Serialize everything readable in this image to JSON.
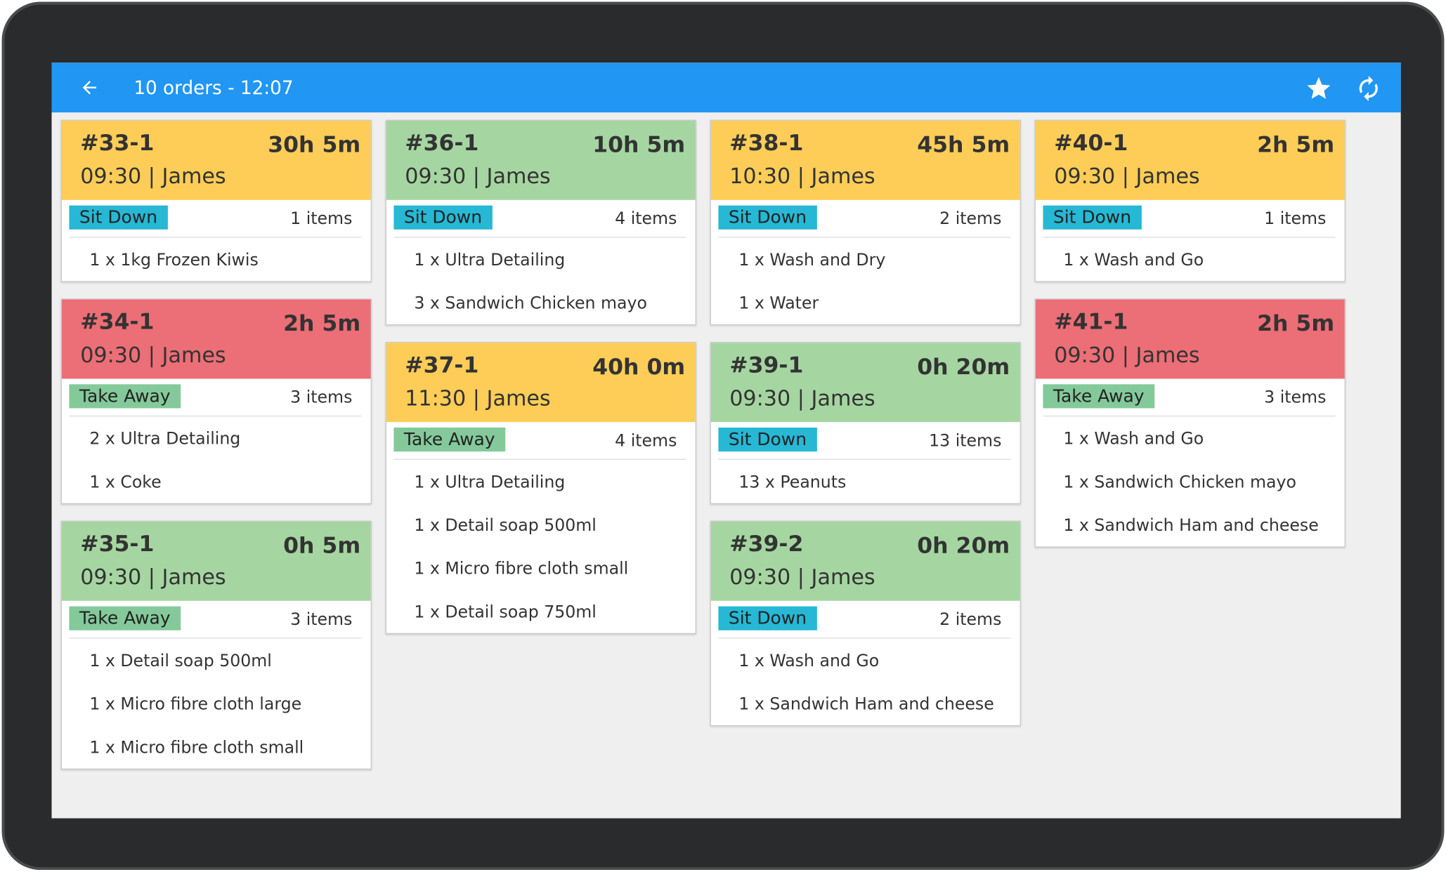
{
  "header": {
    "title": "10 orders - 12:07"
  },
  "columns": [
    {
      "orders": [
        {
          "id": "#33-1",
          "elapsed": "30h 5m",
          "subtitle": "09:30 | James",
          "status": "yellow",
          "mode": "Sit Down",
          "count": "1 items",
          "items": [
            "1 x 1kg Frozen Kiwis"
          ]
        },
        {
          "id": "#34-1",
          "elapsed": "2h 5m",
          "subtitle": "09:30 | James",
          "status": "red",
          "mode": "Take Away",
          "count": "3 items",
          "items": [
            "2 x Ultra Detailing",
            "1 x Coke"
          ]
        },
        {
          "id": "#35-1",
          "elapsed": "0h 5m",
          "subtitle": "09:30 | James",
          "status": "green",
          "mode": "Take Away",
          "count": "3 items",
          "items": [
            "1 x Detail soap 500ml",
            "1 x Micro fibre cloth large",
            "1 x Micro fibre cloth small"
          ]
        }
      ]
    },
    {
      "orders": [
        {
          "id": "#36-1",
          "elapsed": "10h 5m",
          "subtitle": "09:30 | James",
          "status": "green",
          "mode": "Sit Down",
          "count": "4 items",
          "items": [
            "1 x Ultra Detailing",
            "3 x Sandwich Chicken mayo"
          ]
        },
        {
          "id": "#37-1",
          "elapsed": "40h 0m",
          "subtitle": "11:30 | James",
          "status": "yellow",
          "mode": "Take Away",
          "count": "4 items",
          "items": [
            "1 x Ultra Detailing",
            "1 x Detail soap 500ml",
            "1 x Micro fibre cloth small",
            "1 x Detail soap 750ml"
          ]
        }
      ]
    },
    {
      "orders": [
        {
          "id": "#38-1",
          "elapsed": "45h 5m",
          "subtitle": "10:30 | James",
          "status": "yellow",
          "mode": "Sit Down",
          "count": "2 items",
          "items": [
            "1 x Wash and Dry",
            "1 x Water"
          ]
        },
        {
          "id": "#39-1",
          "elapsed": "0h 20m",
          "subtitle": "09:30 | James",
          "status": "green",
          "mode": "Sit Down",
          "count": "13 items",
          "items": [
            "13 x Peanuts"
          ]
        },
        {
          "id": "#39-2",
          "elapsed": "0h 20m",
          "subtitle": "09:30 | James",
          "status": "green",
          "mode": "Sit Down",
          "count": "2 items",
          "items": [
            "1 x Wash and Go",
            "1 x Sandwich Ham and cheese"
          ]
        }
      ]
    },
    {
      "orders": [
        {
          "id": "#40-1",
          "elapsed": "2h 5m",
          "subtitle": "09:30 | James",
          "status": "yellow",
          "mode": "Sit Down",
          "count": "1 items",
          "items": [
            "1 x Wash and Go"
          ]
        },
        {
          "id": "#41-1",
          "elapsed": "2h 5m",
          "subtitle": "09:30 | James",
          "status": "red",
          "mode": "Take Away",
          "count": "3 items",
          "items": [
            "1 x Wash and Go",
            "1 x Sandwich Chicken mayo",
            "1 x Sandwich Ham and cheese"
          ]
        }
      ]
    }
  ]
}
